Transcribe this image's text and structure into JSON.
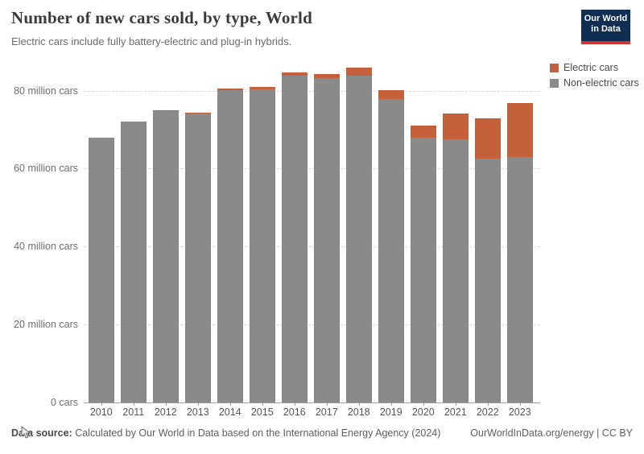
{
  "header": {
    "title": "Number of new cars sold, by type, World",
    "subtitle": "Electric cars include fully battery-electric and plug-in hybrids.",
    "logo": {
      "line1": "Our World",
      "line2": "in Data"
    }
  },
  "legend": {
    "items": [
      {
        "label": "Electric cars",
        "color": "#c4603a"
      },
      {
        "label": "Non-electric cars",
        "color": "#8a8a8a"
      }
    ]
  },
  "chart_data": {
    "type": "bar",
    "stacked": true,
    "title": "Number of new cars sold, by type, World",
    "subtitle": "Electric cars include fully battery-electric and plug-in hybrids.",
    "unit": "million cars",
    "xlabel": "",
    "ylabel": "",
    "ylim": [
      0,
      86
    ],
    "grid": "dashed-horizontal",
    "legend_position": "top-right",
    "categories": [
      "2010",
      "2011",
      "2012",
      "2013",
      "2014",
      "2015",
      "2016",
      "2017",
      "2018",
      "2019",
      "2020",
      "2021",
      "2022",
      "2023"
    ],
    "series": [
      {
        "name": "Non-electric cars",
        "color": "#8a8a8a",
        "values": [
          67.9,
          72.0,
          74.8,
          74.2,
          80.2,
          80.3,
          83.8,
          83.1,
          83.8,
          77.8,
          68.0,
          67.6,
          62.6,
          62.9
        ]
      },
      {
        "name": "Electric cars",
        "color": "#c4603a",
        "values": [
          0.01,
          0.05,
          0.13,
          0.2,
          0.32,
          0.54,
          0.75,
          1.19,
          2.08,
          2.26,
          3.1,
          6.6,
          10.2,
          13.9
        ]
      }
    ],
    "yticks": [
      {
        "value": 0,
        "label": "0 cars"
      },
      {
        "value": 20,
        "label": "20 million cars"
      },
      {
        "value": 40,
        "label": "40 million cars"
      },
      {
        "value": 60,
        "label": "60 million cars"
      },
      {
        "value": 80,
        "label": "80 million cars"
      }
    ]
  },
  "icons": {
    "cursor": "mouse-pointer"
  },
  "footer": {
    "source_label": "Data source:",
    "source_text": " Calculated by Our World in Data based on the International Energy Agency (2024)",
    "link": "OurWorldInData.org/energy | CC BY"
  }
}
